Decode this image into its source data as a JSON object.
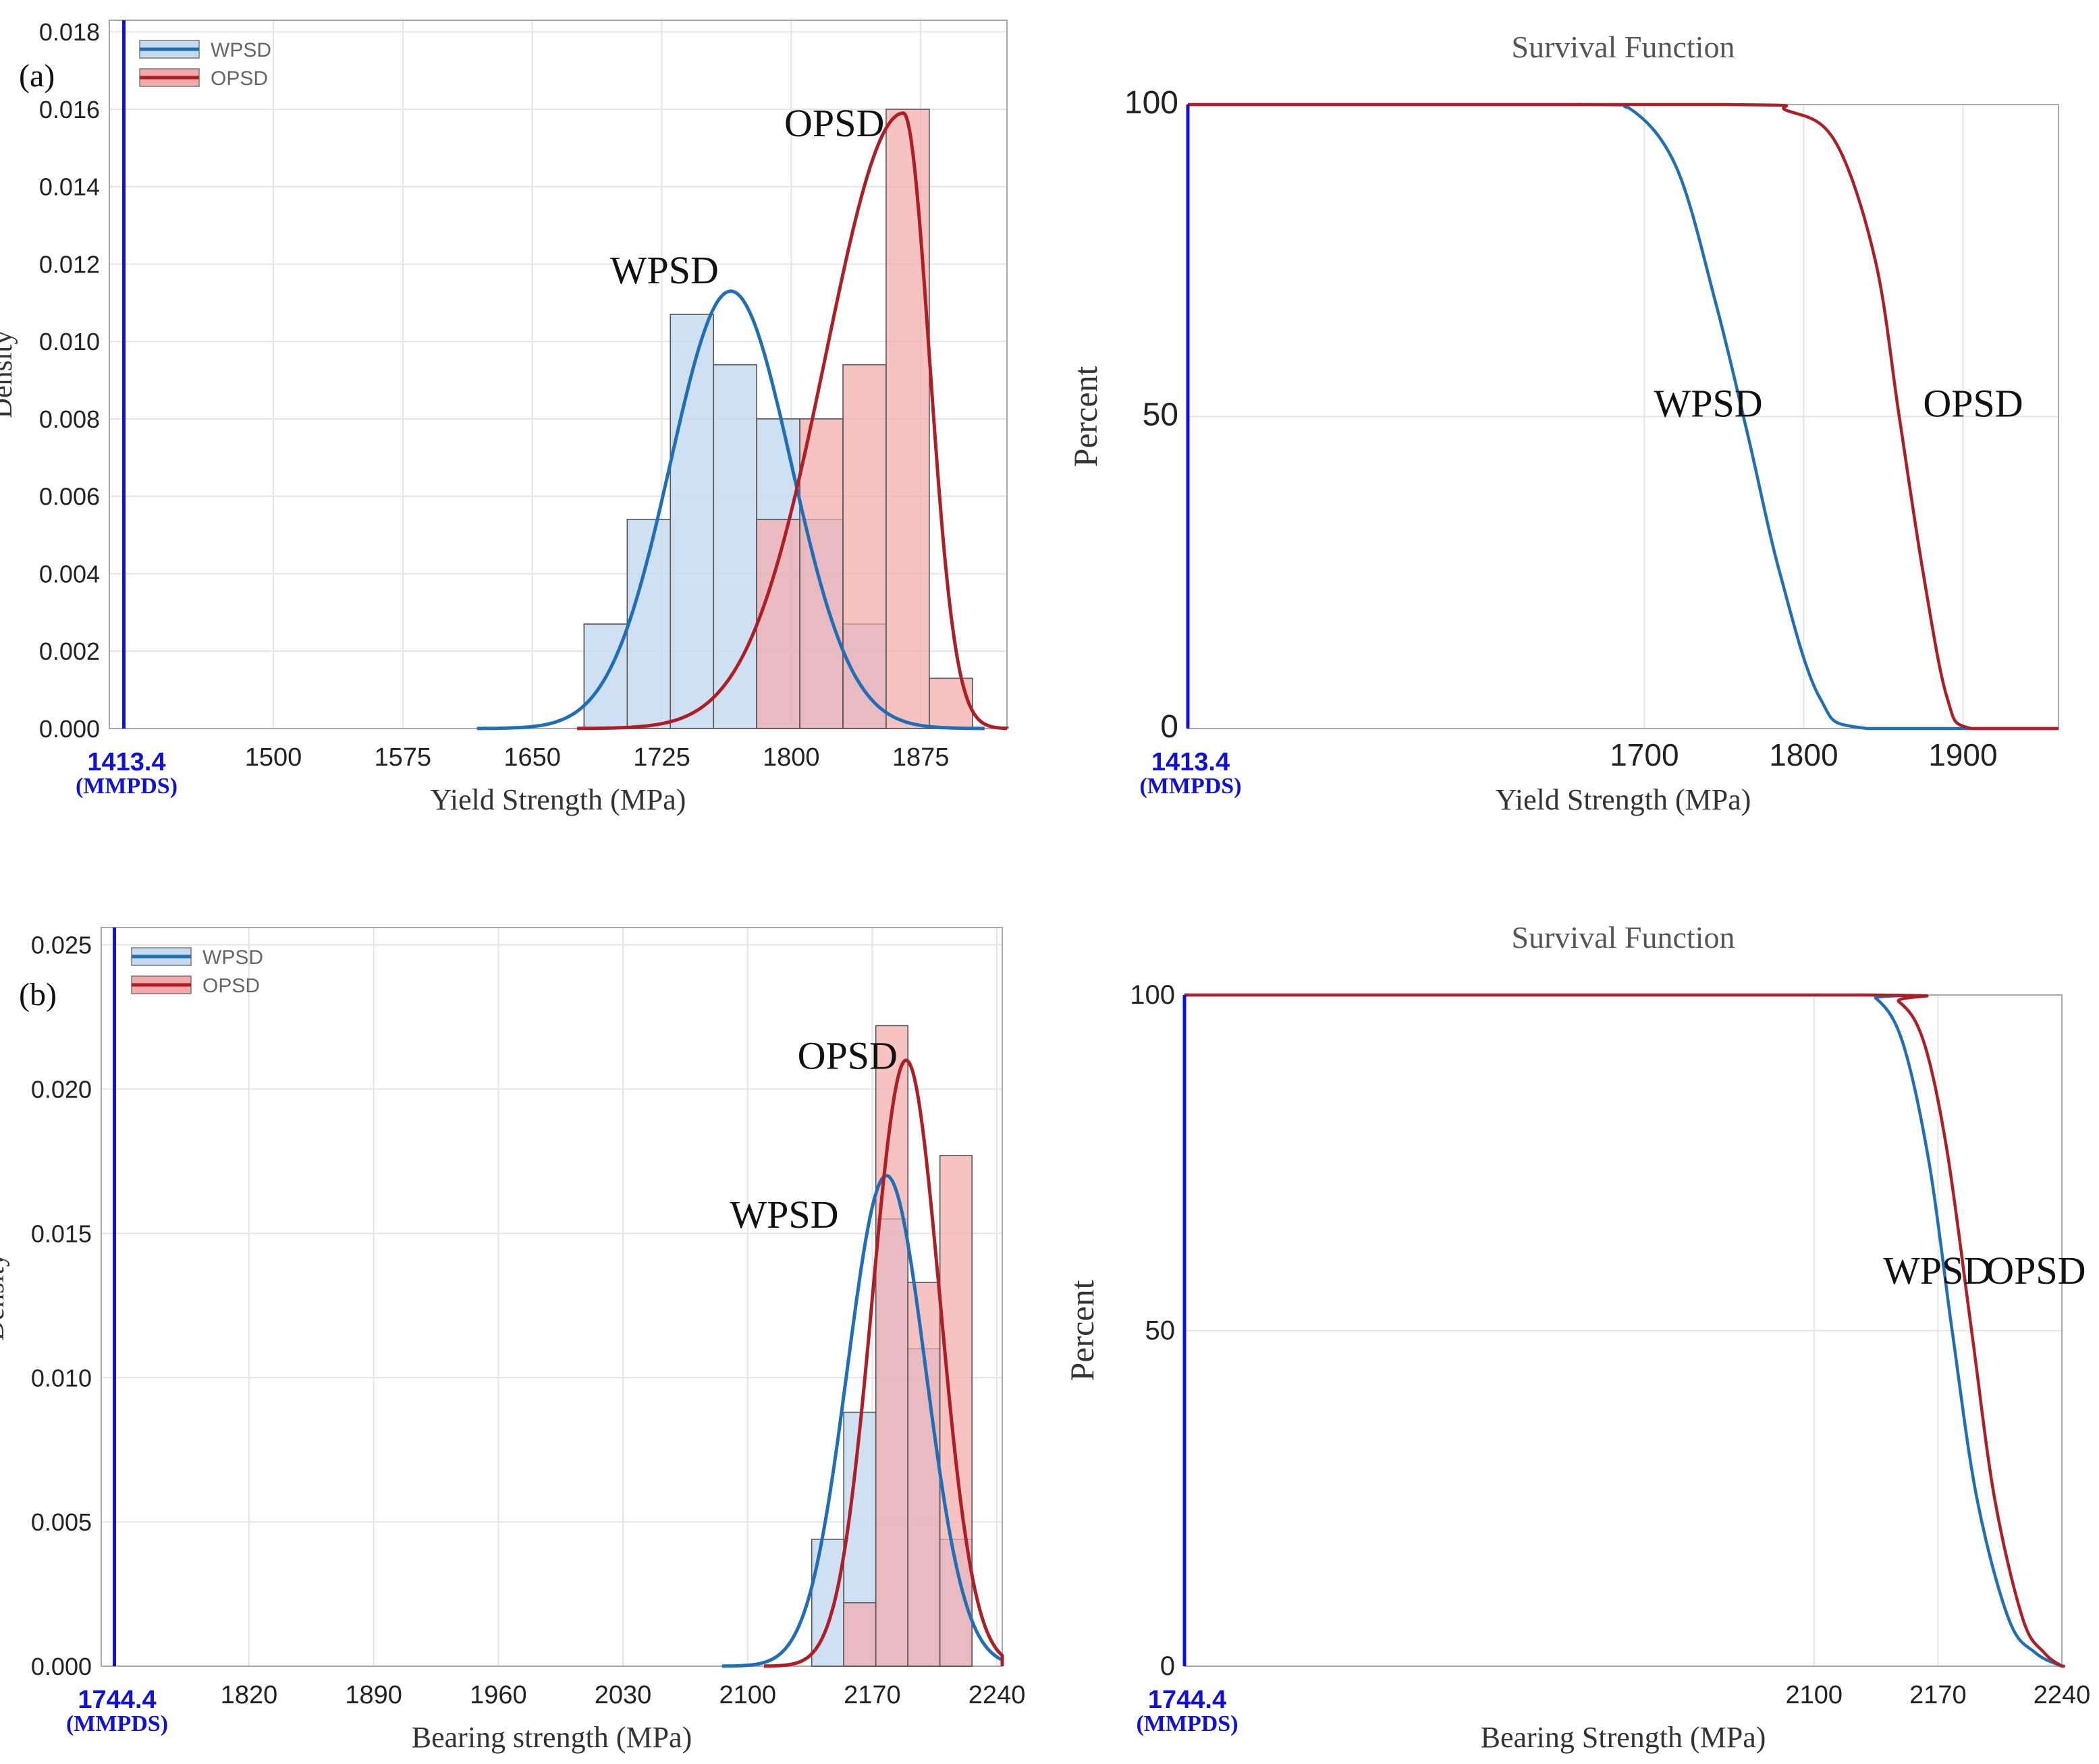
{
  "figure": {
    "panel_labels": [
      "(a)",
      "(b)"
    ]
  },
  "colors": {
    "wpsd_line": "#1f6fb8",
    "wpsd_fill": "#c6dbf0",
    "opsd_line": "#b01e25",
    "opsd_fill": "#f4aaaa",
    "overlap_fill": "#c99aa8",
    "spec_line": "#1010dd",
    "grid": "#e4e4e4",
    "frame": "#a8a8a8",
    "bar_edge": "#555555"
  },
  "chart_data": [
    {
      "id": "a-hist",
      "type": "bar",
      "panel": "(a)",
      "title": "",
      "xlabel": "Yield Strength (MPa)",
      "ylabel": "Density",
      "xlim": [
        1405,
        1925
      ],
      "ylim": [
        0,
        0.0183
      ],
      "xticks": [
        "1500",
        "1575",
        "1650",
        "1725",
        "1800",
        "1875"
      ],
      "xtick_values": [
        1500,
        1575,
        1650,
        1725,
        1800,
        1875
      ],
      "yticks": [
        "0.000",
        "0.002",
        "0.004",
        "0.006",
        "0.008",
        "0.010",
        "0.012",
        "0.014",
        "0.016",
        "0.018"
      ],
      "ytick_values": [
        0,
        0.002,
        0.004,
        0.006,
        0.008,
        0.01,
        0.012,
        0.014,
        0.016,
        0.018
      ],
      "spec": {
        "value": 1413.4,
        "label": "1413.4",
        "sublabel": "(MMPDS)"
      },
      "legend": {
        "position": "top-left",
        "entries": [
          "WPSD",
          "OPSD"
        ]
      },
      "series": [
        {
          "name": "WPSD",
          "bin_width": 25,
          "bin_starts": [
            1680,
            1705,
            1730,
            1755,
            1780,
            1805,
            1830
          ],
          "values": [
            0.0027,
            0.0054,
            0.0107,
            0.0094,
            0.008,
            0.0054,
            0.0027
          ],
          "fit": {
            "mean": 1765,
            "sd": 35,
            "peak": 0.0113
          }
        },
        {
          "name": "OPSD",
          "bin_width": 25,
          "bin_starts": [
            1780,
            1805,
            1830,
            1855,
            1880
          ],
          "values": [
            0.0054,
            0.008,
            0.0094,
            0.016,
            0.0013
          ],
          "fit": {
            "mean": 1865,
            "left_sd": 45,
            "right_sd": 15,
            "peak": 0.0159
          }
        }
      ],
      "annotations": [
        {
          "text": "WPSD",
          "x": 1695,
          "y": 0.0115
        },
        {
          "text": "OPSD",
          "x": 1796,
          "y": 0.0153
        }
      ]
    },
    {
      "id": "a-surv",
      "type": "line",
      "panel": "(a)",
      "title": "Survival Function",
      "xlabel": "Yield Strength (MPa)",
      "ylabel": "Percent",
      "xlim": [
        1413.4,
        1960
      ],
      "ylim": [
        0,
        100
      ],
      "xticks": [
        "1700",
        "1800",
        "1900"
      ],
      "xtick_values": [
        1700,
        1800,
        1900
      ],
      "yticks": [
        "0",
        "50",
        "100"
      ],
      "ytick_values": [
        0,
        50,
        100
      ],
      "spec": {
        "value": 1413.4,
        "label": "1413.4",
        "sublabel": "(MMPDS)"
      },
      "series": [
        {
          "name": "WPSD",
          "x": [
            1660,
            1690,
            1720,
            1745,
            1765,
            1785,
            1810,
            1840
          ],
          "y": [
            100,
            99.5,
            90,
            68,
            47,
            25,
            5,
            0
          ]
        },
        {
          "name": "OPSD",
          "x": [
            1750,
            1790,
            1820,
            1845,
            1860,
            1875,
            1890,
            1905
          ],
          "y": [
            100,
            99,
            94,
            75,
            50,
            25,
            5,
            0
          ]
        }
      ],
      "annotations": [
        {
          "text": "WPSD",
          "x": 1706,
          "y": 50
        },
        {
          "text": "OPSD",
          "x": 1875,
          "y": 50
        }
      ]
    },
    {
      "id": "b-hist",
      "type": "bar",
      "panel": "(b)",
      "title": "",
      "xlabel": "Bearing strength (MPa)",
      "ylabel": "Density",
      "xlim": [
        1737,
        2243
      ],
      "ylim": [
        0,
        0.0256
      ],
      "xticks": [
        "1820",
        "1890",
        "1960",
        "2030",
        "2100",
        "2170",
        "2240"
      ],
      "xtick_values": [
        1820,
        1890,
        1960,
        2030,
        2100,
        2170,
        2240
      ],
      "yticks": [
        "0.000",
        "0.005",
        "0.010",
        "0.015",
        "0.020",
        "0.025"
      ],
      "ytick_values": [
        0,
        0.005,
        0.01,
        0.015,
        0.02,
        0.025
      ],
      "spec": {
        "value": 1744.4,
        "label": "1744.4",
        "sublabel": "(MMPDS)"
      },
      "legend": {
        "position": "top-left",
        "entries": [
          "WPSD",
          "OPSD"
        ]
      },
      "series": [
        {
          "name": "WPSD",
          "bin_width": 18,
          "bin_starts": [
            2136,
            2154,
            2172,
            2190,
            2208
          ],
          "values": [
            0.0044,
            0.0088,
            0.0155,
            0.011,
            0.0044
          ],
          "fit": {
            "mean": 2178,
            "sd": 22,
            "peak": 0.017
          }
        },
        {
          "name": "OPSD",
          "bin_width": 18,
          "bin_starts": [
            2154,
            2172,
            2190,
            2208
          ],
          "values": [
            0.0022,
            0.0222,
            0.0133,
            0.0177
          ],
          "fit": {
            "mean": 2189,
            "sd": 19,
            "peak": 0.021
          }
        }
      ],
      "annotations": [
        {
          "text": "OPSD",
          "x": 2128,
          "y": 0.0207
        },
        {
          "text": "WPSD",
          "x": 2090,
          "y": 0.0152
        }
      ]
    },
    {
      "id": "b-surv",
      "type": "line",
      "panel": "(b)",
      "title": "Survival Function",
      "xlabel": "Bearing Strength (MPa)",
      "ylabel": "Percent",
      "xlim": [
        1744.4,
        2240
      ],
      "ylim": [
        0,
        100
      ],
      "xticks": [
        "2100",
        "2170",
        "2240"
      ],
      "xtick_values": [
        2100,
        2170,
        2240
      ],
      "yticks": [
        "0",
        "50",
        "100"
      ],
      "ytick_values": [
        0,
        50,
        100
      ],
      "spec": {
        "value": 1744.4,
        "label": "1744.4",
        "sublabel": "(MMPDS)"
      },
      "series": [
        {
          "name": "WPSD",
          "x": [
            2120,
            2135,
            2150,
            2165,
            2178,
            2192,
            2210,
            2225,
            2240
          ],
          "y": [
            100,
            99.5,
            93,
            75,
            50,
            25,
            7,
            2,
            0
          ]
        },
        {
          "name": "OPSD",
          "x": [
            2130,
            2148,
            2162,
            2175,
            2189,
            2202,
            2218,
            2230,
            2240
          ],
          "y": [
            100,
            99,
            93,
            77,
            50,
            25,
            7,
            2,
            0
          ]
        }
      ],
      "annotations": [
        {
          "text": "WPSD",
          "x": 2139,
          "y": 57
        },
        {
          "text": "OPSD",
          "x": 2197,
          "y": 57
        }
      ]
    }
  ]
}
